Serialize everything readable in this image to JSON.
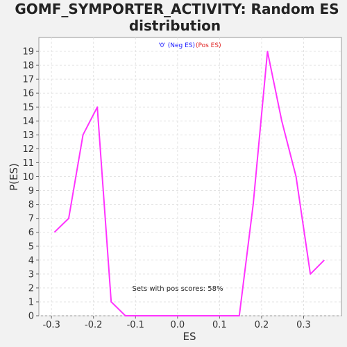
{
  "chart_data": {
    "type": "line",
    "title_line1": "GOMF_SYMPORTER_ACTIVITY: Random ES",
    "title_line2": "distribution",
    "xlabel": "ES",
    "ylabel": "P(ES)",
    "xlim": [
      -0.33,
      0.39
    ],
    "ylim": [
      0,
      20
    ],
    "x_ticks": [
      -0.3,
      -0.2,
      -0.1,
      0.0,
      0.1,
      0.2,
      0.3
    ],
    "x_tick_labels": [
      "-0.3",
      "-0.2",
      "-0.1",
      "0.0",
      "0.1",
      "0.2",
      "0.3"
    ],
    "y_ticks": [
      0,
      1,
      2,
      3,
      4,
      5,
      6,
      7,
      8,
      9,
      10,
      11,
      12,
      13,
      14,
      15,
      16,
      17,
      18,
      19
    ],
    "grid": true,
    "legend": {
      "placement": "top-center",
      "entries": [
        {
          "label": "'0' (Neg ES)",
          "color": "#1a1aff"
        },
        {
          "label": "(Pos ES)",
          "color": "#e02020"
        }
      ]
    },
    "annotation": "Sets with pos scores: 58%",
    "line_color": "#ff33ff",
    "series": [
      {
        "x": [
          -0.293,
          -0.259,
          -0.225,
          -0.191,
          -0.158,
          -0.124,
          -0.09,
          -0.056,
          -0.022,
          0.011,
          0.045,
          0.079,
          0.113,
          0.147,
          0.18,
          0.214,
          0.248,
          0.282,
          0.316,
          0.349
        ],
        "y": [
          6,
          7,
          13,
          15,
          1,
          0,
          0,
          0,
          0,
          0,
          0,
          0,
          0,
          0,
          8,
          19,
          14,
          10,
          3,
          4
        ]
      }
    ]
  }
}
